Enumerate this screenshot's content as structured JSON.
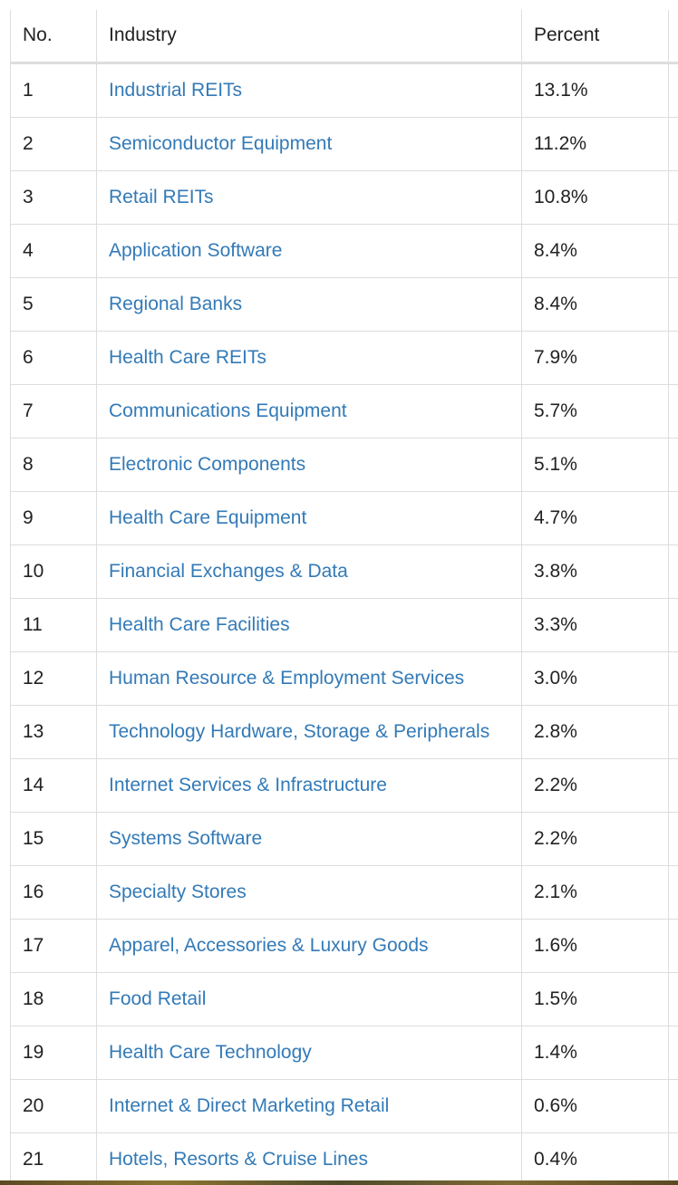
{
  "table": {
    "headers": {
      "no": "No.",
      "industry": "Industry",
      "percent": "Percent"
    },
    "rows": [
      {
        "no": "1",
        "industry": "Industrial REITs",
        "percent": "13.1%"
      },
      {
        "no": "2",
        "industry": "Semiconductor Equipment",
        "percent": "11.2%"
      },
      {
        "no": "3",
        "industry": "Retail REITs",
        "percent": "10.8%"
      },
      {
        "no": "4",
        "industry": "Application Software",
        "percent": "8.4%"
      },
      {
        "no": "5",
        "industry": "Regional Banks",
        "percent": "8.4%"
      },
      {
        "no": "6",
        "industry": "Health Care REITs",
        "percent": "7.9%"
      },
      {
        "no": "7",
        "industry": "Communications Equipment",
        "percent": "5.7%"
      },
      {
        "no": "8",
        "industry": "Electronic Components",
        "percent": "5.1%"
      },
      {
        "no": "9",
        "industry": "Health Care Equipment",
        "percent": "4.7%"
      },
      {
        "no": "10",
        "industry": "Financial Exchanges & Data",
        "percent": "3.8%"
      },
      {
        "no": "11",
        "industry": "Health Care Facilities",
        "percent": "3.3%"
      },
      {
        "no": "12",
        "industry": "Human Resource & Employment Services",
        "percent": "3.0%"
      },
      {
        "no": "13",
        "industry": "Technology Hardware, Storage & Peripherals",
        "percent": "2.8%"
      },
      {
        "no": "14",
        "industry": "Internet Services & Infrastructure",
        "percent": "2.2%"
      },
      {
        "no": "15",
        "industry": "Systems Software",
        "percent": "2.2%"
      },
      {
        "no": "16",
        "industry": "Specialty Stores",
        "percent": "2.1%"
      },
      {
        "no": "17",
        "industry": "Apparel, Accessories & Luxury Goods",
        "percent": "1.6%"
      },
      {
        "no": "18",
        "industry": "Food Retail",
        "percent": "1.5%"
      },
      {
        "no": "19",
        "industry": "Health Care Technology",
        "percent": "1.4%"
      },
      {
        "no": "20",
        "industry": "Internet & Direct Marketing Retail",
        "percent": "0.6%"
      },
      {
        "no": "21",
        "industry": "Hotels, Resorts & Cruise Lines",
        "percent": "0.4%"
      }
    ]
  },
  "colors": {
    "link": "#337ab7",
    "text": "#222222",
    "border": "#dddddd"
  }
}
